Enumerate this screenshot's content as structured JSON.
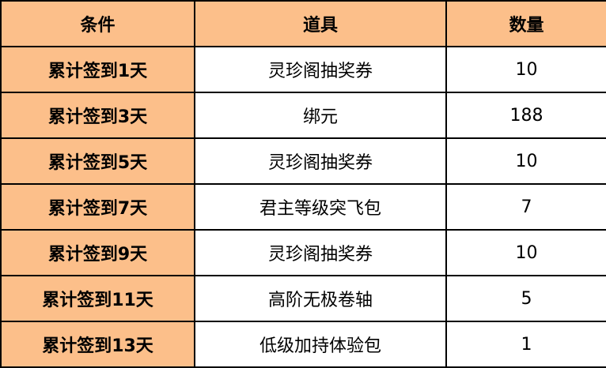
{
  "headers": [
    "条件",
    "道具",
    "数量"
  ],
  "rows": [
    [
      "累计签到1天",
      "灵珍阁抽奖券",
      "10"
    ],
    [
      "累计签到3天",
      "绑元",
      "188"
    ],
    [
      "累计签到5天",
      "灵珍阁抽奖券",
      "10"
    ],
    [
      "累计签到7天",
      "君主等级突飞包",
      "7"
    ],
    [
      "累计签到9天",
      "灵珍阁抽奖券",
      "10"
    ],
    [
      "累计签到11天",
      "高阶无极卷轴",
      "5"
    ],
    [
      "累计签到13天",
      "低级加持体验包",
      "1"
    ]
  ],
  "colors": {
    "header_bg": "#FCBF8A",
    "border": "#000000"
  }
}
